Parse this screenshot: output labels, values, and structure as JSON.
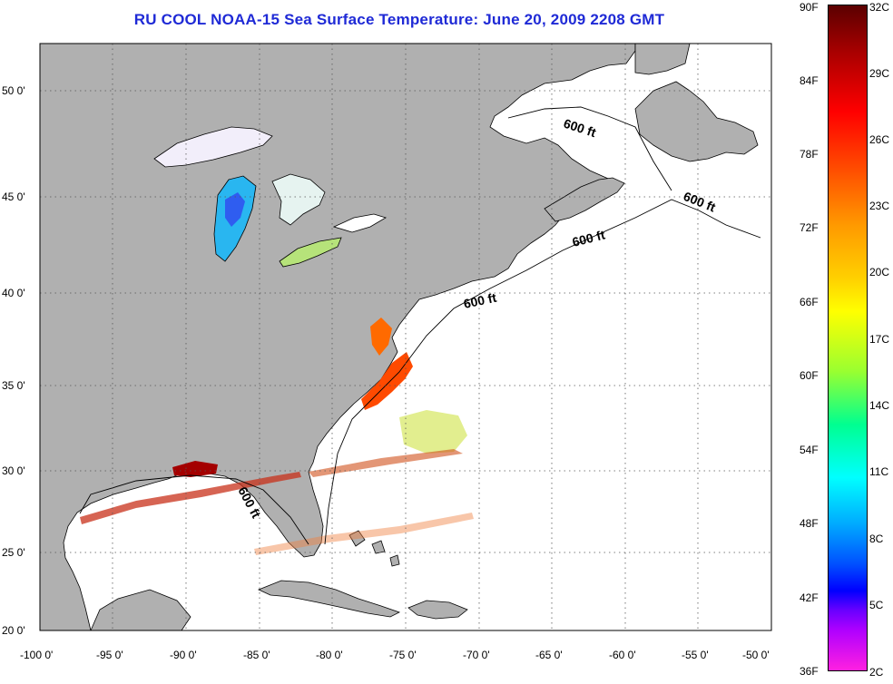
{
  "title": "RU COOL  NOAA-15  Sea Surface Temperature:  June 20, 2009 2208 GMT",
  "map": {
    "lat_labels": [
      "50 0'",
      "45 0'",
      "40 0'",
      "35 0'",
      "30 0'",
      "25 0'",
      "20 0'"
    ],
    "lon_labels": [
      "-100 0'",
      "-95 0'",
      "-90 0'",
      "-85 0'",
      "-80 0'",
      "-75 0'",
      "-70 0'",
      "-65 0'",
      "-60 0'",
      "-55 0'",
      "-50 0'"
    ],
    "contour_labels": [
      "600 ft",
      "600 ft",
      "600 ft",
      "600 ft",
      "600 ft"
    ],
    "colors": {
      "land": "#b0b0b0",
      "ocean": "#ffffff",
      "grid": "#555555"
    }
  },
  "colorbar": {
    "fahrenheit": [
      "90F",
      "84F",
      "78F",
      "72F",
      "66F",
      "60F",
      "54F",
      "48F",
      "42F",
      "36F"
    ],
    "celsius": [
      "32C",
      "29C",
      "26C",
      "23C",
      "20C",
      "17C",
      "14C",
      "11C",
      "8C",
      "5C",
      "2C"
    ]
  }
}
